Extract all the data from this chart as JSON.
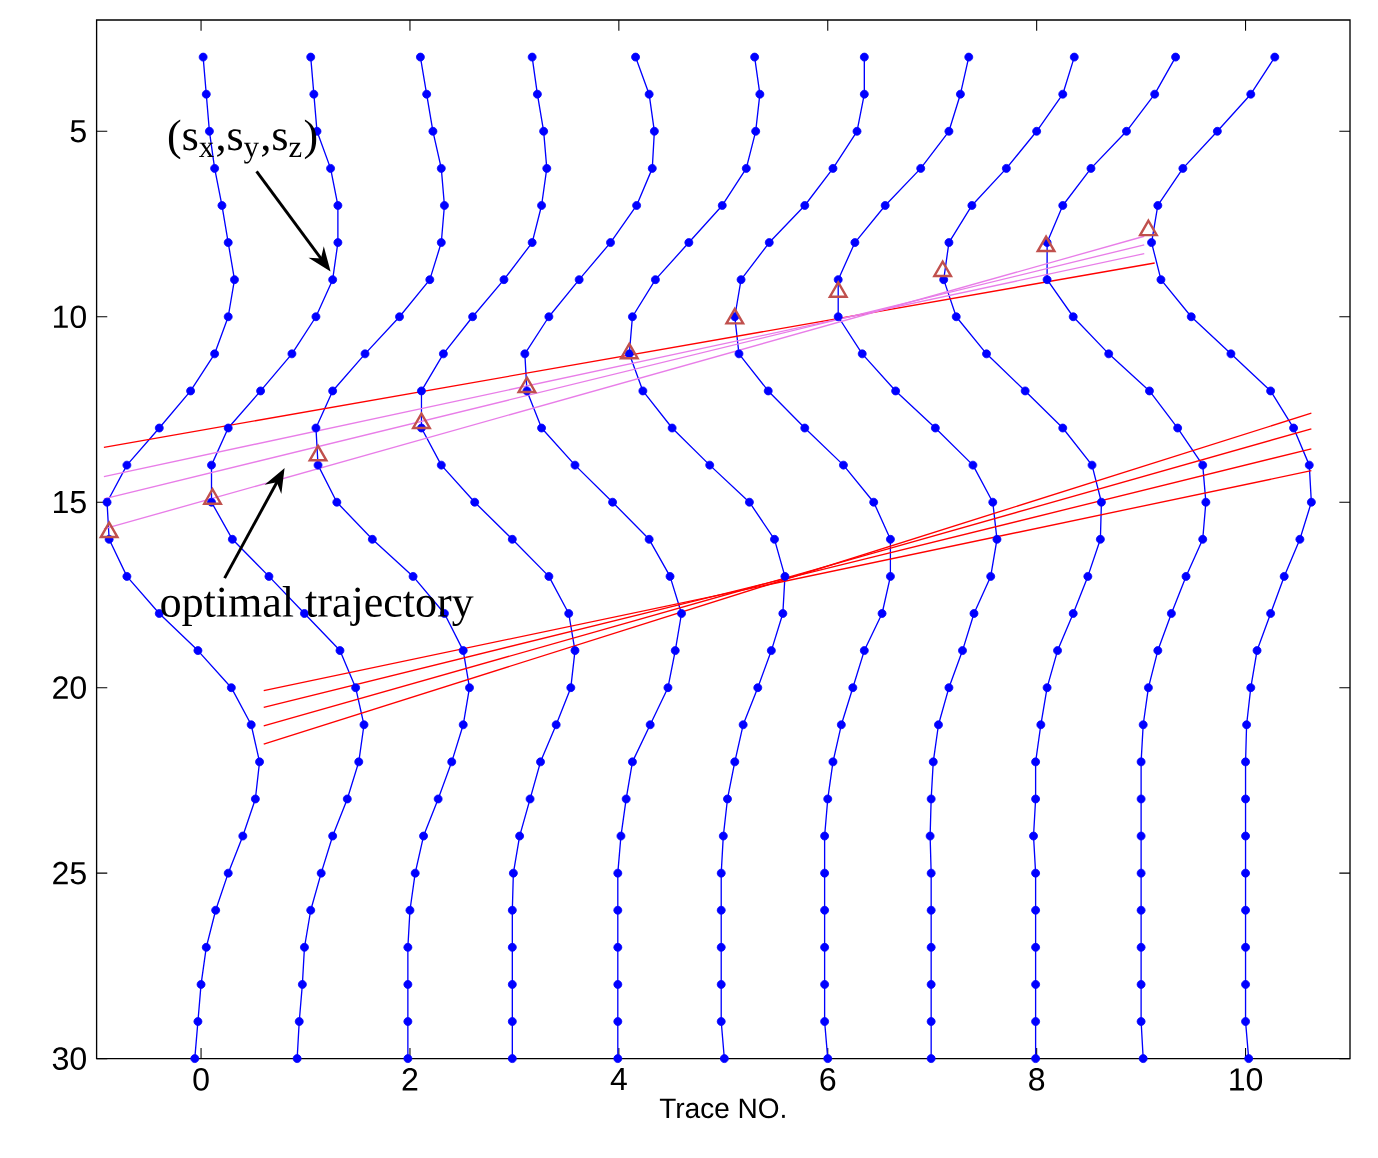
{
  "chart_data": {
    "type": "line",
    "orientation": "horizontal",
    "xlabel": "Trace NO.",
    "xlim": [
      -1,
      11
    ],
    "ylim": [
      30,
      2
    ],
    "xticks": [
      0,
      2,
      4,
      6,
      8,
      10
    ],
    "yticks": [
      5,
      10,
      15,
      20,
      25,
      30
    ],
    "marker": "circle",
    "line_style": "solid",
    "annotations": [
      {
        "text": "(s$_{x}$,s$_{y}$,s$_{z}$)",
        "x": 1.24,
        "y": 8.78
      },
      {
        "text": "optimal trajectory",
        "x": 0.8,
        "y": 14.08
      }
    ],
    "series": [
      {
        "color": "#0000ff",
        "values": [
          0.02,
          0.05,
          0.08,
          0.13,
          0.2,
          0.26,
          0.32,
          0.26,
          0.13,
          -0.1,
          -0.4,
          -0.71,
          -0.9,
          -0.88,
          -0.71,
          -0.4,
          -0.03,
          0.29,
          0.48,
          0.56,
          0.52,
          0.4,
          0.26,
          0.14,
          0.05,
          0.0,
          -0.03,
          -0.06
        ],
        "x": [
          3,
          4,
          5,
          6,
          7,
          8,
          9,
          10,
          11,
          12,
          13,
          14,
          15,
          16,
          17,
          18,
          19,
          20,
          21,
          22,
          23,
          24,
          25,
          26,
          27,
          28,
          29,
          30
        ]
      },
      {
        "color": "#0000ff",
        "values": [
          1.05,
          1.08,
          1.11,
          1.24,
          1.31,
          1.31,
          1.26,
          1.1,
          0.87,
          0.57,
          0.26,
          0.1,
          0.1,
          0.3,
          0.65,
          0.99,
          1.33,
          1.48,
          1.56,
          1.51,
          1.4,
          1.26,
          1.15,
          1.05,
          0.99,
          0.97,
          0.94,
          0.92
        ],
        "x": [
          3,
          4,
          5,
          6,
          7,
          8,
          9,
          10,
          11,
          12,
          13,
          14,
          15,
          16,
          17,
          18,
          19,
          20,
          21,
          22,
          23,
          24,
          25,
          26,
          27,
          28,
          29,
          30
        ]
      },
      {
        "color": "#0000ff",
        "values": [
          2.1,
          2.16,
          2.22,
          2.3,
          2.33,
          2.3,
          2.19,
          1.9,
          1.57,
          1.26,
          1.1,
          1.12,
          1.3,
          1.64,
          2.03,
          2.33,
          2.51,
          2.57,
          2.51,
          2.4,
          2.27,
          2.13,
          2.05,
          2.0,
          1.98,
          1.98,
          1.98,
          1.98
        ],
        "x": [
          3,
          4,
          5,
          6,
          7,
          8,
          9,
          10,
          11,
          12,
          13,
          14,
          15,
          16,
          17,
          18,
          19,
          20,
          21,
          22,
          23,
          24,
          25,
          26,
          27,
          28,
          29,
          30
        ]
      },
      {
        "color": "#0000ff",
        "values": [
          3.17,
          3.22,
          3.28,
          3.31,
          3.26,
          3.17,
          2.9,
          2.6,
          2.32,
          2.11,
          2.11,
          2.3,
          2.62,
          2.98,
          3.33,
          3.52,
          3.58,
          3.54,
          3.4,
          3.25,
          3.15,
          3.05,
          2.99,
          2.98,
          2.98,
          2.98,
          2.98,
          2.98
        ],
        "x": [
          3,
          4,
          5,
          6,
          7,
          8,
          9,
          10,
          11,
          12,
          13,
          14,
          15,
          16,
          17,
          18,
          19,
          20,
          21,
          22,
          23,
          24,
          25,
          26,
          27,
          28,
          29,
          30
        ]
      },
      {
        "color": "#0000ff",
        "values": [
          4.16,
          4.29,
          4.34,
          4.32,
          4.17,
          3.92,
          3.62,
          3.33,
          3.1,
          3.12,
          3.26,
          3.58,
          3.94,
          4.29,
          4.49,
          4.6,
          4.54,
          4.47,
          4.3,
          4.13,
          4.07,
          4.02,
          3.99,
          3.99,
          3.99,
          3.99,
          3.99,
          3.99
        ],
        "x": [
          3,
          4,
          5,
          6,
          7,
          8,
          9,
          10,
          11,
          12,
          13,
          14,
          15,
          16,
          17,
          18,
          19,
          20,
          21,
          22,
          23,
          24,
          25,
          26,
          27,
          28,
          29,
          30
        ]
      },
      {
        "color": "#0000ff",
        "values": [
          5.3,
          5.35,
          5.31,
          5.22,
          4.99,
          4.67,
          4.35,
          4.13,
          4.1,
          4.23,
          4.51,
          4.87,
          5.25,
          5.49,
          5.59,
          5.57,
          5.46,
          5.33,
          5.19,
          5.11,
          5.04,
          5.0,
          4.98,
          4.98,
          4.98,
          4.98,
          4.98,
          5.01
        ],
        "x": [
          3,
          4,
          5,
          6,
          7,
          8,
          9,
          10,
          11,
          12,
          13,
          14,
          15,
          16,
          17,
          18,
          19,
          20,
          21,
          22,
          23,
          24,
          25,
          26,
          27,
          28,
          29,
          30
        ]
      },
      {
        "color": "#0000ff",
        "values": [
          6.35,
          6.35,
          6.28,
          6.05,
          5.78,
          5.44,
          5.17,
          5.11,
          5.15,
          5.43,
          5.78,
          6.15,
          6.44,
          6.6,
          6.6,
          6.52,
          6.35,
          6.24,
          6.13,
          6.05,
          6.0,
          5.97,
          5.97,
          5.97,
          5.97,
          5.97,
          5.97,
          6.0
        ],
        "x": [
          3,
          4,
          5,
          6,
          7,
          8,
          9,
          10,
          11,
          12,
          13,
          14,
          15,
          16,
          17,
          18,
          19,
          20,
          21,
          22,
          23,
          24,
          25,
          26,
          27,
          28,
          29,
          30
        ]
      },
      {
        "color": "#0000ff",
        "values": [
          7.35,
          7.27,
          7.16,
          6.89,
          6.55,
          6.26,
          6.1,
          6.1,
          6.33,
          6.65,
          7.03,
          7.39,
          7.58,
          7.62,
          7.56,
          7.4,
          7.29,
          7.16,
          7.06,
          7.01,
          6.99,
          6.98,
          6.99,
          6.99,
          6.99,
          6.99,
          6.99,
          6.99
        ],
        "x": [
          3,
          4,
          5,
          6,
          7,
          8,
          9,
          10,
          11,
          12,
          13,
          14,
          15,
          16,
          17,
          18,
          19,
          20,
          21,
          22,
          23,
          24,
          25,
          26,
          27,
          28,
          29,
          30
        ]
      },
      {
        "color": "#0000ff",
        "values": [
          8.36,
          8.25,
          8.0,
          7.71,
          7.38,
          7.16,
          7.11,
          7.23,
          7.52,
          7.89,
          8.25,
          8.53,
          8.62,
          8.61,
          8.49,
          8.35,
          8.2,
          8.1,
          8.04,
          7.99,
          7.99,
          7.97,
          7.99,
          7.99,
          7.99,
          7.99,
          7.99,
          7.99
        ],
        "x": [
          3,
          4,
          5,
          6,
          7,
          8,
          9,
          10,
          11,
          12,
          13,
          14,
          15,
          16,
          17,
          18,
          19,
          20,
          21,
          22,
          23,
          24,
          25,
          26,
          27,
          28,
          29,
          30
        ]
      },
      {
        "color": "#0000ff",
        "values": [
          9.33,
          9.13,
          8.86,
          8.52,
          8.25,
          8.1,
          8.1,
          8.35,
          8.69,
          9.08,
          9.35,
          9.59,
          9.62,
          9.59,
          9.43,
          9.29,
          9.16,
          9.07,
          9.02,
          9.0,
          9.0,
          9.0,
          9.0,
          9.0,
          9.0,
          9.0,
          9.0,
          9.02
        ],
        "x": [
          3,
          4,
          5,
          6,
          7,
          8,
          9,
          10,
          11,
          12,
          13,
          14,
          15,
          16,
          17,
          18,
          19,
          20,
          21,
          22,
          23,
          24,
          25,
          26,
          27,
          28,
          29,
          30
        ]
      },
      {
        "color": "#0000ff",
        "values": [
          10.28,
          10.05,
          9.73,
          9.4,
          9.16,
          9.1,
          9.19,
          9.48,
          9.86,
          10.24,
          10.46,
          10.61,
          10.63,
          10.52,
          10.37,
          10.24,
          10.11,
          10.05,
          10.01,
          10.0,
          10.0,
          10.0,
          10.0,
          10.0,
          10.0,
          10.0,
          10.0,
          10.03
        ],
        "x": [
          3,
          4,
          5,
          6,
          7,
          8,
          9,
          10,
          11,
          12,
          13,
          14,
          15,
          16,
          17,
          18,
          19,
          20,
          21,
          22,
          23,
          24,
          25,
          26,
          27,
          28,
          29,
          30
        ]
      },
      {
        "color": "#ff0000",
        "marker": "none",
        "values": [
          -0.93,
          9.13
        ],
        "x": [
          13.52,
          8.55
        ]
      },
      {
        "color": "#e87de8",
        "marker": "none",
        "values": [
          -0.93,
          9.03
        ],
        "x": [
          15.72,
          7.83
        ]
      },
      {
        "color": "#e87de8",
        "marker": "none",
        "values": [
          -0.93,
          9.03
        ],
        "x": [
          14.91,
          8.06
        ]
      },
      {
        "color": "#e87de8",
        "marker": "none",
        "values": [
          -0.93,
          9.03
        ],
        "x": [
          14.31,
          8.3
        ]
      },
      {
        "color": "#ff0000",
        "marker": "none",
        "values": [
          0.6,
          10.63
        ],
        "x": [
          20.08,
          14.15
        ]
      },
      {
        "color": "#ff0000",
        "marker": "none",
        "values": [
          0.6,
          10.63
        ],
        "x": [
          20.53,
          13.56
        ]
      },
      {
        "color": "#ff0000",
        "marker": "none",
        "values": [
          0.6,
          10.63
        ],
        "x": [
          21.03,
          13.02
        ]
      },
      {
        "color": "#ff0000",
        "marker": "none",
        "values": [
          0.6,
          10.63
        ],
        "x": [
          21.52,
          12.6
        ]
      },
      {
        "type": "scatter",
        "marker": "triangle",
        "color": "#c0504d",
        "values": [
          -0.88,
          0.11,
          1.12,
          2.11,
          3.12,
          4.1,
          5.11,
          6.1,
          7.1,
          8.09,
          9.07
        ],
        "x": [
          15.81,
          14.91,
          13.74,
          12.87,
          11.9,
          10.99,
          10.05,
          9.33,
          8.77,
          8.1,
          7.67
        ]
      }
    ]
  }
}
